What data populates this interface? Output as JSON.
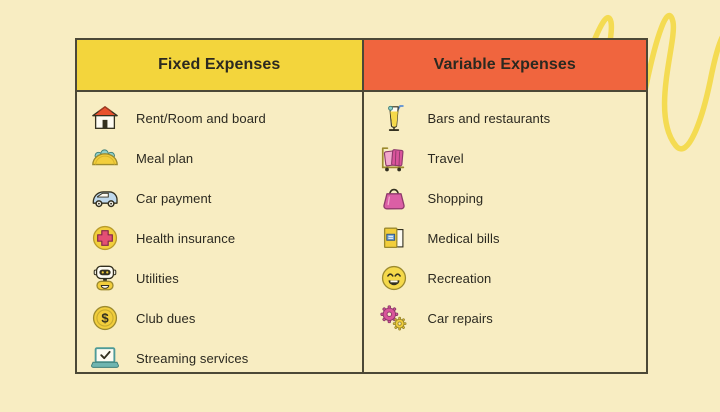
{
  "page": {
    "background": "#F8EDC2"
  },
  "decor": {
    "squiggle_color": "#F4DB52"
  },
  "table": {
    "border_color": "#4C4836",
    "text_color": "#2B2920",
    "columns": [
      {
        "id": "fixed",
        "header": "Fixed Expenses",
        "header_bg": "#F3D53C",
        "items": [
          {
            "icon": "house-icon",
            "label": "Rent/Room and board"
          },
          {
            "icon": "taco-icon",
            "label": "Meal plan"
          },
          {
            "icon": "car-icon",
            "label": "Car payment"
          },
          {
            "icon": "health-cross-icon",
            "label": "Health insurance"
          },
          {
            "icon": "robot-icon",
            "label": "Utilities"
          },
          {
            "icon": "dollar-coin-icon",
            "label": "Club dues"
          },
          {
            "icon": "laptop-check-icon",
            "label": "Streaming services"
          }
        ]
      },
      {
        "id": "variable",
        "header": "Variable Expenses",
        "header_bg": "#F0653E",
        "items": [
          {
            "icon": "cocktail-icon",
            "label": "Bars and restaurants"
          },
          {
            "icon": "luggage-icon",
            "label": "Travel"
          },
          {
            "icon": "handbag-icon",
            "label": "Shopping"
          },
          {
            "icon": "medical-bills-icon",
            "label": "Medical bills"
          },
          {
            "icon": "smiley-icon",
            "label": "Recreation"
          },
          {
            "icon": "gears-icon",
            "label": "Car repairs"
          }
        ]
      }
    ]
  }
}
